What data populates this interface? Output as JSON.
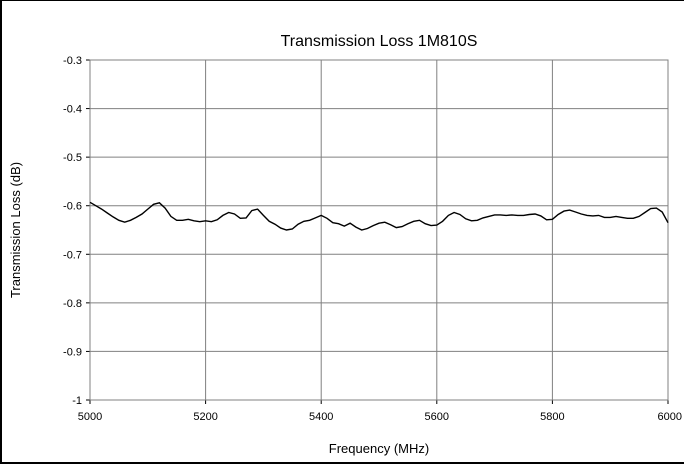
{
  "chart_data": {
    "type": "line",
    "title": "Transmission Loss 1M810S",
    "xlabel": "Frequency (MHz)",
    "ylabel": "Transmission Loss (dB)",
    "xlim": [
      5000,
      6000
    ],
    "ylim": [
      -1,
      -0.3
    ],
    "x_ticks": [
      "5000",
      "5200",
      "5400",
      "5600",
      "5800",
      "6000"
    ],
    "y_ticks": [
      "-0.3",
      "-0.4",
      "-0.5",
      "-0.6",
      "-0.7",
      "-0.8",
      "-0.9",
      "-1"
    ],
    "grid": true,
    "legend": "none",
    "line_color": "#000000",
    "series": [
      {
        "x": [
          5000,
          5010,
          5020,
          5030,
          5040,
          5050,
          5060,
          5070,
          5080,
          5090,
          5100,
          5110,
          5120,
          5130,
          5140,
          5150,
          5160,
          5170,
          5180,
          5190,
          5200,
          5210,
          5220,
          5230,
          5240,
          5250,
          5260,
          5270,
          5280,
          5290,
          5300,
          5310,
          5320,
          5330,
          5340,
          5350,
          5360,
          5370,
          5380,
          5390,
          5400,
          5410,
          5420,
          5430,
          5440,
          5450,
          5460,
          5470,
          5480,
          5490,
          5500,
          5510,
          5520,
          5530,
          5540,
          5550,
          5560,
          5570,
          5580,
          5590,
          5600,
          5610,
          5620,
          5630,
          5640,
          5650,
          5660,
          5670,
          5680,
          5690,
          5700,
          5710,
          5720,
          5730,
          5740,
          5750,
          5760,
          5770,
          5780,
          5790,
          5800,
          5810,
          5820,
          5830,
          5840,
          5850,
          5860,
          5870,
          5880,
          5890,
          5900,
          5910,
          5920,
          5930,
          5940,
          5950,
          5960,
          5970,
          5980,
          5990,
          6000
        ],
        "values": [
          -0.593,
          -0.6,
          -0.607,
          -0.615,
          -0.623,
          -0.63,
          -0.634,
          -0.63,
          -0.624,
          -0.617,
          -0.607,
          -0.597,
          -0.594,
          -0.605,
          -0.622,
          -0.63,
          -0.63,
          -0.628,
          -0.631,
          -0.633,
          -0.631,
          -0.633,
          -0.629,
          -0.62,
          -0.614,
          -0.617,
          -0.626,
          -0.625,
          -0.61,
          -0.607,
          -0.62,
          -0.632,
          -0.638,
          -0.646,
          -0.65,
          -0.648,
          -0.638,
          -0.632,
          -0.63,
          -0.625,
          -0.62,
          -0.626,
          -0.635,
          -0.637,
          -0.642,
          -0.636,
          -0.644,
          -0.65,
          -0.647,
          -0.641,
          -0.636,
          -0.634,
          -0.639,
          -0.645,
          -0.643,
          -0.637,
          -0.632,
          -0.63,
          -0.637,
          -0.641,
          -0.64,
          -0.632,
          -0.62,
          -0.614,
          -0.618,
          -0.627,
          -0.631,
          -0.63,
          -0.625,
          -0.622,
          -0.619,
          -0.619,
          -0.62,
          -0.619,
          -0.62,
          -0.62,
          -0.618,
          -0.617,
          -0.621,
          -0.629,
          -0.628,
          -0.618,
          -0.611,
          -0.609,
          -0.613,
          -0.617,
          -0.62,
          -0.621,
          -0.62,
          -0.624,
          -0.624,
          -0.622,
          -0.624,
          -0.626,
          -0.626,
          -0.622,
          -0.614,
          -0.606,
          -0.605,
          -0.613,
          -0.635
        ]
      }
    ]
  }
}
